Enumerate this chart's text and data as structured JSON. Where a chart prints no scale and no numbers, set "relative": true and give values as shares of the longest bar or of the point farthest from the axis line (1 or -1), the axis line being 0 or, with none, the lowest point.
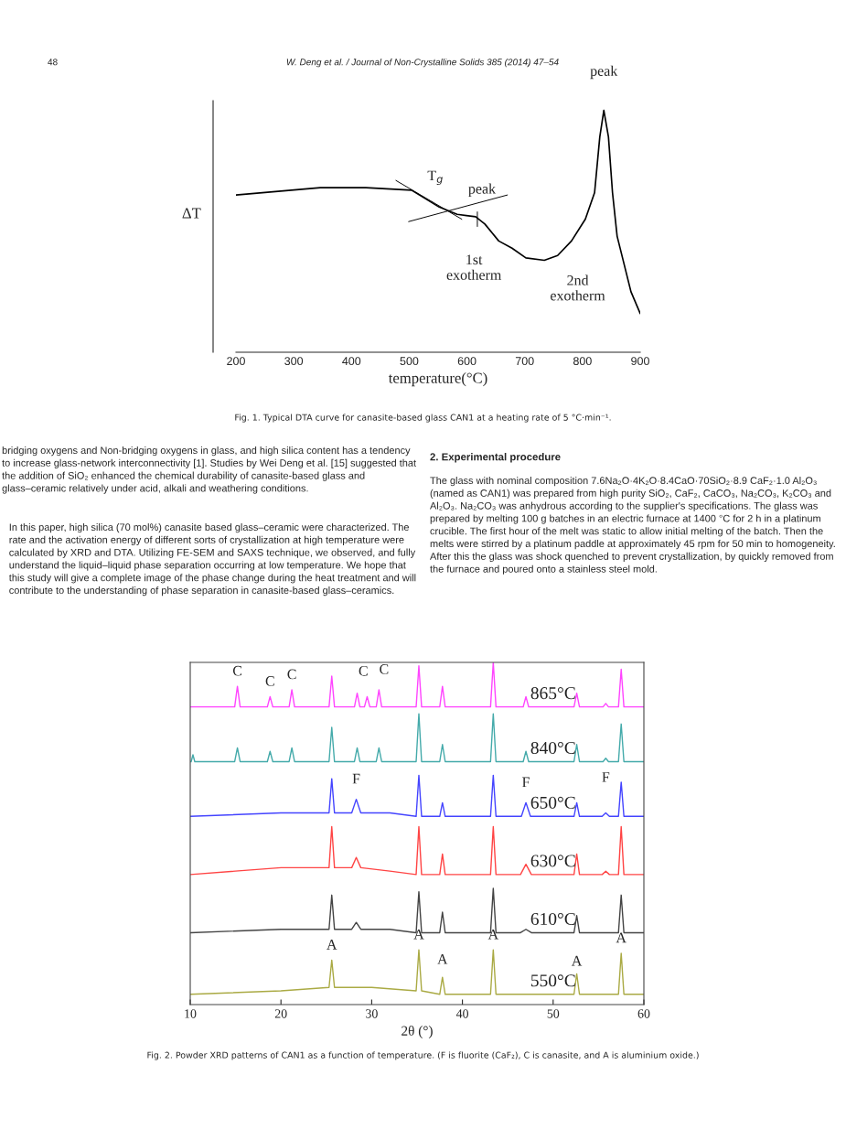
{
  "chart_data": [
    {
      "type": "line",
      "relative": true,
      "xlim": [
        200,
        900
      ],
      "xticks": [
        200,
        300,
        400,
        500,
        600,
        700,
        800,
        900
      ],
      "tick_labels": "x",
      "xlabel": "temperature(°C)",
      "ylabel": "ΔT",
      "series": [
        {
          "color": "#000000",
          "x": [
            200,
            346,
            425,
            504,
            552,
            583,
            615,
            631,
            655,
            678,
            702,
            734,
            757,
            781,
            805,
            821,
            830,
            837,
            845,
            852,
            860,
            884,
            900
          ],
          "values": [
            0.65,
            0.68,
            0.68,
            0.67,
            0.6,
            0.57,
            0.56,
            0.53,
            0.46,
            0.43,
            0.39,
            0.38,
            0.4,
            0.46,
            0.55,
            0.66,
            0.89,
            1.0,
            0.89,
            0.66,
            0.48,
            0.25,
            0.16
          ]
        },
        {
          "color": "#000000",
          "x": [
            477,
            591
          ],
          "values": [
            0.71,
            0.55
          ]
        },
        {
          "color": "#000000",
          "x": [
            499,
            670
          ],
          "values": [
            0.54,
            0.65
          ]
        },
        {
          "color": "#000000",
          "x": [
            618,
            618
          ],
          "values": [
            0.58,
            0.52
          ]
        }
      ],
      "annotations": [
        {
          "text": "peak",
          "x": 837,
          "y": 1.0
        },
        {
          "text": "T$_{g}$",
          "x": 552,
          "y": 0.6
        },
        {
          "text": "peak",
          "x": 615,
          "y": 0.56
        },
        {
          "text": "1st\nexotherm",
          "x": 678,
          "y": 0.43
        },
        {
          "text": "2nd\nexotherm",
          "x": 884,
          "y": 0.25
        },
        "Fig. 1. Typical DTA curve for canasite-based glass CAN1 at a heating rate of 5 °C·min⁻¹."
      ]
    },
    {
      "type": "other",
      "annotations": [
        "48",
        "W. Deng et al. / Journal of Non-Crystalline Solids 385 (2014) 47–54",
        "bridging oxygens and Non-bridging oxygens in glass, and high silica content has a tendency to increase glass-network interconnectivity [1]. Studies by Wei Deng et al. [15] suggested that the addition of SiO₂ enhanced the chemical durability of canasite-based glass and glass–ceramic relatively under acid, alkali and weathering conditions.",
        "In this paper, high silica (70 mol%) canasite based glass–ceramic were characterized. The rate and the activation energy of different sorts of crystallization at high temperature were calculated by XRD and DTA. Utilizing FE-SEM and SAXS technique, we observed, and fully understand the liquid–liquid phase separation occurring at low temperature. We hope that this study will give a complete image of the phase change during the heat treatment and will contribute to the understanding of phase separation in canasite-based glass–ceramics.",
        "2. Experimental procedure",
        "The glass with nominal composition 7.6Na₂O·4K₂O·8.4CaO·70SiO₂·8.9 CaF₂·1.0 Al₂O₃ (named as CAN1) was prepared from high purity SiO₂, CaF₂, CaCO₃, Na₂CO₃, K₂CO₃ and Al₂O₃. Na₂CO₃ was anhydrous according to the supplier's specifications. The glass was prepared by melting 100 g batches in an electric furnace at 1400 °C for 2 h in a platinum crucible. The first hour of the melt was static to allow initial melting of the batch. Then the melts were stirred by a platinum paddle at approximately 45 rpm for 50 min to homogeneity. After this the glass was shock quenched to prevent crystallization, by quickly removed from the furnace and poured onto a stainless steel mold."
      ]
    },
    {
      "type": "line",
      "relative": true,
      "xlim": [
        10,
        60
      ],
      "xticks": [
        10,
        20,
        30,
        40,
        50,
        60
      ],
      "tick_labels": "x",
      "xlabel": "2θ (°)",
      "series": [
        {
          "name": "865°C",
          "color": "#ff44ff",
          "x": [
            10,
            14.9,
            15.2,
            15.5,
            18.5,
            18.8,
            19.1,
            20.9,
            21.2,
            21.5,
            25.3,
            25.6,
            25.9,
            28.1,
            28.4,
            28.7,
            29.2,
            29.5,
            29.8,
            30.5,
            30.8,
            31.1,
            34.9,
            35.2,
            35.5,
            37.5,
            37.8,
            38.1,
            43.1,
            43.4,
            43.7,
            46.7,
            47,
            47.3,
            52.3,
            52.6,
            52.9,
            55.5,
            55.8,
            56.1,
            57.2,
            57.5,
            57.8,
            60
          ],
          "values": [
            0.87,
            0.87,
            0.93,
            0.87,
            0.87,
            0.9,
            0.87,
            0.87,
            0.92,
            0.87,
            0.87,
            0.96,
            0.87,
            0.87,
            0.91,
            0.87,
            0.87,
            0.9,
            0.87,
            0.87,
            0.92,
            0.87,
            0.87,
            0.99,
            0.87,
            0.87,
            0.93,
            0.87,
            0.87,
            1.0,
            0.87,
            0.87,
            0.9,
            0.87,
            0.87,
            0.91,
            0.87,
            0.87,
            0.88,
            0.87,
            0.87,
            0.98,
            0.87,
            0.87
          ]
        },
        {
          "name": "840°C",
          "color": "#44aaaa",
          "x": [
            10,
            10.1,
            10.3,
            10.5,
            14.9,
            15.2,
            15.5,
            18.5,
            18.8,
            19.1,
            20.9,
            21.2,
            21.5,
            25.3,
            25.6,
            25.9,
            28.1,
            28.4,
            28.7,
            30.5,
            30.8,
            31.1,
            34.9,
            35.2,
            35.5,
            37.5,
            37.8,
            38.1,
            43.1,
            43.4,
            43.7,
            46.7,
            47,
            47.3,
            52.3,
            52.6,
            52.9,
            55.5,
            55.8,
            56.1,
            57.2,
            57.5,
            57.8,
            60
          ],
          "values": [
            0.71,
            0.71,
            0.73,
            0.71,
            0.71,
            0.75,
            0.71,
            0.71,
            0.74,
            0.71,
            0.71,
            0.75,
            0.71,
            0.71,
            0.81,
            0.71,
            0.71,
            0.75,
            0.71,
            0.71,
            0.75,
            0.71,
            0.71,
            0.85,
            0.71,
            0.71,
            0.76,
            0.71,
            0.71,
            0.85,
            0.71,
            0.71,
            0.74,
            0.71,
            0.71,
            0.76,
            0.71,
            0.71,
            0.72,
            0.71,
            0.71,
            0.82,
            0.71,
            0.71
          ]
        },
        {
          "name": "650°C",
          "color": "#4444ff",
          "x": [
            10,
            20,
            25.3,
            25.6,
            25.9,
            27.8,
            28.3,
            28.8,
            32,
            34.9,
            35.2,
            35.5,
            37.5,
            37.8,
            38.1,
            43.1,
            43.4,
            43.7,
            46.5,
            47,
            47.5,
            52.3,
            52.6,
            52.9,
            55.4,
            55.8,
            56.2,
            57.2,
            57.5,
            57.8,
            60
          ],
          "values": [
            0.55,
            0.56,
            0.56,
            0.66,
            0.56,
            0.56,
            0.6,
            0.56,
            0.56,
            0.55,
            0.67,
            0.55,
            0.55,
            0.59,
            0.55,
            0.55,
            0.67,
            0.55,
            0.55,
            0.59,
            0.55,
            0.55,
            0.59,
            0.55,
            0.55,
            0.56,
            0.55,
            0.55,
            0.65,
            0.55,
            0.55
          ]
        },
        {
          "name": "630°C",
          "color": "#ff4444",
          "x": [
            10,
            20,
            25.3,
            25.6,
            25.9,
            27.8,
            28.3,
            28.8,
            32,
            34.9,
            35.2,
            35.5,
            37.5,
            37.8,
            38.1,
            43.1,
            43.4,
            43.7,
            46.4,
            47,
            47.6,
            52.3,
            52.6,
            52.9,
            55.4,
            55.8,
            56.2,
            57.2,
            57.5,
            57.8,
            60
          ],
          "values": [
            0.38,
            0.4,
            0.4,
            0.52,
            0.4,
            0.4,
            0.43,
            0.4,
            0.39,
            0.38,
            0.52,
            0.38,
            0.38,
            0.44,
            0.38,
            0.38,
            0.52,
            0.38,
            0.38,
            0.41,
            0.38,
            0.38,
            0.44,
            0.38,
            0.38,
            0.39,
            0.38,
            0.38,
            0.52,
            0.38,
            0.38
          ]
        },
        {
          "name": "610°C",
          "color": "#444444",
          "x": [
            10,
            20,
            25.3,
            25.6,
            25.9,
            27.8,
            28.3,
            28.8,
            32,
            34.9,
            35.2,
            35.5,
            37.5,
            37.8,
            38.1,
            43.1,
            43.4,
            43.7,
            46.4,
            47,
            47.6,
            52.3,
            52.6,
            52.9,
            57.2,
            57.5,
            57.8,
            60
          ],
          "values": [
            0.21,
            0.22,
            0.22,
            0.32,
            0.22,
            0.22,
            0.24,
            0.22,
            0.22,
            0.21,
            0.33,
            0.21,
            0.21,
            0.27,
            0.21,
            0.21,
            0.34,
            0.21,
            0.21,
            0.22,
            0.21,
            0.21,
            0.26,
            0.21,
            0.21,
            0.32,
            0.21,
            0.21
          ]
        },
        {
          "name": "550°C",
          "color": "#aaaa44",
          "x": [
            10,
            20,
            25.3,
            25.6,
            25.9,
            30,
            34.9,
            35.2,
            35.5,
            37.5,
            37.8,
            38.1,
            43.1,
            43.4,
            43.7,
            52.3,
            52.6,
            52.9,
            57.2,
            57.5,
            57.8,
            60
          ],
          "values": [
            0.03,
            0.04,
            0.05,
            0.13,
            0.05,
            0.05,
            0.04,
            0.16,
            0.04,
            0.03,
            0.08,
            0.03,
            0.03,
            0.16,
            0.03,
            0.03,
            0.09,
            0.03,
            0.03,
            0.15,
            0.03,
            0.03
          ]
        }
      ],
      "annotations": [
        {
          "text": "C",
          "x": 15.2,
          "y": 0.93
        },
        {
          "text": "C",
          "x": 18.8,
          "y": 0.9
        },
        {
          "text": "C",
          "x": 21.2,
          "y": 0.92
        },
        {
          "text": "C",
          "x": 29.5,
          "y": 0.9
        },
        {
          "text": "C",
          "x": 30.8,
          "y": 0.92
        },
        {
          "text": "F",
          "x": 28.3,
          "y": 0.6
        },
        {
          "text": "F",
          "x": 47,
          "y": 0.59
        },
        {
          "text": "F",
          "x": 55.8,
          "y": 0.56
        },
        {
          "text": "A",
          "x": 25.6,
          "y": 0.13
        },
        {
          "text": "A",
          "x": 35.2,
          "y": 0.16
        },
        {
          "text": "A",
          "x": 37.8,
          "y": 0.08
        },
        {
          "text": "A",
          "x": 43.4,
          "y": 0.16
        },
        {
          "text": "A",
          "x": 52.6,
          "y": 0.09
        },
        {
          "text": "A",
          "x": 57.5,
          "y": 0.15
        },
        "Fig. 2. Powder XRD patterns of CAN1 as a function of temperature. (F is fluorite (CaF₂), C is canasite, and A is aluminium oxide.)"
      ]
    }
  ]
}
